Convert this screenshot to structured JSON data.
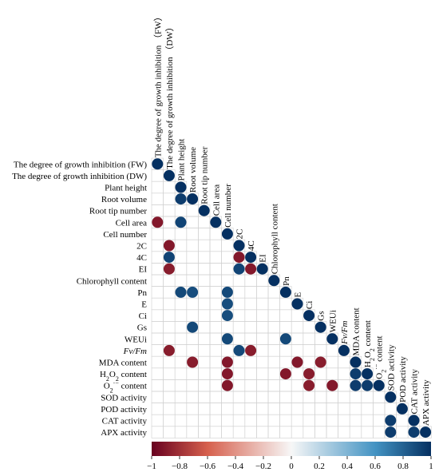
{
  "chart_data": {
    "type": "heatmap",
    "shape": "lower-triangular correlation matrix",
    "variables": [
      "The degree of growth  inhibition (FW)",
      "The degree of growth  inhibition (DW)",
      "Plant height",
      "Root volume",
      "Root tip number",
      "Cell area",
      "Cell number",
      "2C",
      "4C",
      "EI",
      "Chlorophyll content",
      "Pn",
      "E",
      "Ci",
      "Gs",
      "WEUi",
      "Fv/Fm",
      "MDA content",
      "H2O2 content",
      "O2·− content",
      "SOD activity",
      "POD activity",
      "CAT activity",
      "APX activity"
    ],
    "top_labels": [
      "The degree of growth  inhibition （FW）",
      "The degree of growth  inhibition （DW）",
      "Plant height",
      "Root volume",
      "Root tip number",
      "Cell area",
      "Cell number",
      "2C",
      "4C",
      "EI",
      "Chlorophyll content",
      "Pn",
      "E",
      "Ci",
      "Gs",
      "WEUi",
      "Fv/Fm",
      "MDA content",
      "H2O2 content",
      "O2·− content",
      "SOD activity",
      "POD activity",
      "CAT activity",
      "APX activity"
    ],
    "cells": [
      {
        "row": 0,
        "col": 0,
        "value": 1.0
      },
      {
        "row": 1,
        "col": 1,
        "value": 1.0
      },
      {
        "row": 2,
        "col": 2,
        "value": 1.0
      },
      {
        "row": 3,
        "col": 2,
        "value": 0.95
      },
      {
        "row": 3,
        "col": 3,
        "value": 1.0
      },
      {
        "row": 4,
        "col": 4,
        "value": 1.0
      },
      {
        "row": 5,
        "col": 0,
        "value": -0.9
      },
      {
        "row": 5,
        "col": 2,
        "value": 0.92
      },
      {
        "row": 5,
        "col": 5,
        "value": 1.0
      },
      {
        "row": 6,
        "col": 6,
        "value": 1.0
      },
      {
        "row": 7,
        "col": 1,
        "value": -0.9
      },
      {
        "row": 7,
        "col": 7,
        "value": 1.0
      },
      {
        "row": 8,
        "col": 1,
        "value": 0.92
      },
      {
        "row": 8,
        "col": 7,
        "value": -0.9
      },
      {
        "row": 8,
        "col": 8,
        "value": 1.0
      },
      {
        "row": 9,
        "col": 1,
        "value": -0.88
      },
      {
        "row": 9,
        "col": 7,
        "value": 0.92
      },
      {
        "row": 9,
        "col": 8,
        "value": -0.9
      },
      {
        "row": 9,
        "col": 9,
        "value": 1.0
      },
      {
        "row": 10,
        "col": 10,
        "value": 1.0
      },
      {
        "row": 11,
        "col": 2,
        "value": 0.9
      },
      {
        "row": 11,
        "col": 3,
        "value": 0.88
      },
      {
        "row": 11,
        "col": 6,
        "value": 0.9
      },
      {
        "row": 11,
        "col": 11,
        "value": 1.0
      },
      {
        "row": 12,
        "col": 6,
        "value": 0.88
      },
      {
        "row": 12,
        "col": 12,
        "value": 1.0
      },
      {
        "row": 13,
        "col": 6,
        "value": 0.88
      },
      {
        "row": 13,
        "col": 13,
        "value": 1.0
      },
      {
        "row": 14,
        "col": 3,
        "value": 0.9
      },
      {
        "row": 14,
        "col": 14,
        "value": 1.0
      },
      {
        "row": 15,
        "col": 6,
        "value": 0.9
      },
      {
        "row": 15,
        "col": 11,
        "value": 0.9
      },
      {
        "row": 15,
        "col": 15,
        "value": 1.0
      },
      {
        "row": 16,
        "col": 1,
        "value": -0.88
      },
      {
        "row": 16,
        "col": 7,
        "value": 0.9
      },
      {
        "row": 16,
        "col": 8,
        "value": -0.88
      },
      {
        "row": 16,
        "col": 16,
        "value": 1.0
      },
      {
        "row": 17,
        "col": 3,
        "value": -0.88
      },
      {
        "row": 17,
        "col": 6,
        "value": -0.9
      },
      {
        "row": 17,
        "col": 12,
        "value": -0.9
      },
      {
        "row": 17,
        "col": 14,
        "value": -0.88
      },
      {
        "row": 17,
        "col": 17,
        "value": 1.0
      },
      {
        "row": 18,
        "col": 6,
        "value": -0.9
      },
      {
        "row": 18,
        "col": 11,
        "value": -0.9
      },
      {
        "row": 18,
        "col": 13,
        "value": -0.88
      },
      {
        "row": 18,
        "col": 17,
        "value": 0.95
      },
      {
        "row": 18,
        "col": 18,
        "value": 1.0
      },
      {
        "row": 19,
        "col": 6,
        "value": -0.9
      },
      {
        "row": 19,
        "col": 13,
        "value": -0.88
      },
      {
        "row": 19,
        "col": 15,
        "value": -0.9
      },
      {
        "row": 19,
        "col": 17,
        "value": 0.95
      },
      {
        "row": 19,
        "col": 18,
        "value": 0.95
      },
      {
        "row": 19,
        "col": 19,
        "value": 1.0
      },
      {
        "row": 20,
        "col": 20,
        "value": 1.0
      },
      {
        "row": 21,
        "col": 21,
        "value": 1.0
      },
      {
        "row": 22,
        "col": 20,
        "value": 0.95
      },
      {
        "row": 22,
        "col": 22,
        "value": 1.0
      },
      {
        "row": 23,
        "col": 20,
        "value": 0.95
      },
      {
        "row": 23,
        "col": 22,
        "value": 0.95
      },
      {
        "row": 23,
        "col": 23,
        "value": 1.0
      }
    ],
    "colorbar": {
      "range": [
        -1,
        1
      ],
      "ticks": [
        "−1",
        "−0.8",
        "−0.6",
        "−0.4",
        "−0.2",
        "0",
        "0.2",
        "0.4",
        "0.6",
        "0.8",
        "1"
      ],
      "colors": {
        "neg": "#67001f",
        "mid_neg": "#d6604d",
        "zero": "#f7f7f7",
        "mid_pos": "#4393c3",
        "pos": "#053061"
      }
    }
  }
}
